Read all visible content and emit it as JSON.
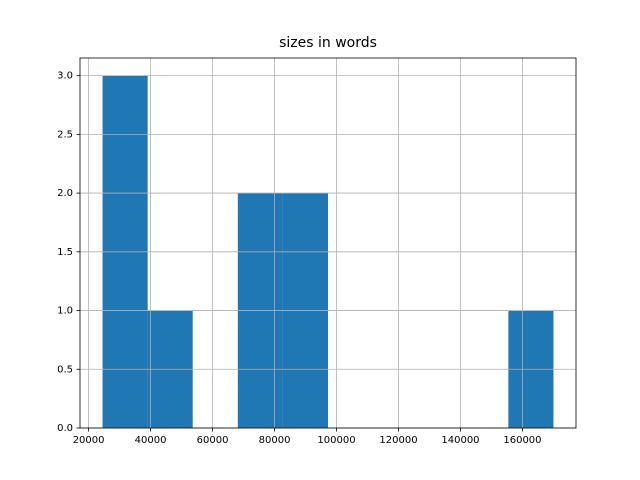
{
  "chart_data": {
    "type": "histogram",
    "title": "sizes in words",
    "bins": [
      24500,
      39050,
      53600,
      68150,
      82700,
      97250,
      111800,
      126350,
      140900,
      155450,
      170000
    ],
    "counts": [
      3,
      1,
      0,
      2,
      2,
      0,
      0,
      0,
      0,
      1
    ],
    "color": "#1f77b4",
    "xlim": [
      17225,
      177275
    ],
    "xticks": [
      20000,
      40000,
      60000,
      80000,
      100000,
      120000,
      140000,
      160000
    ],
    "ylim": [
      0,
      3.15
    ],
    "yticks": [
      {
        "value": 0,
        "label": "0.0"
      },
      0.5,
      {
        "value": 1,
        "label": "1.0"
      },
      1.5,
      {
        "value": 2,
        "label": "2.0"
      },
      2.5,
      {
        "value": 3,
        "label": "3.0"
      }
    ],
    "grid": true
  }
}
